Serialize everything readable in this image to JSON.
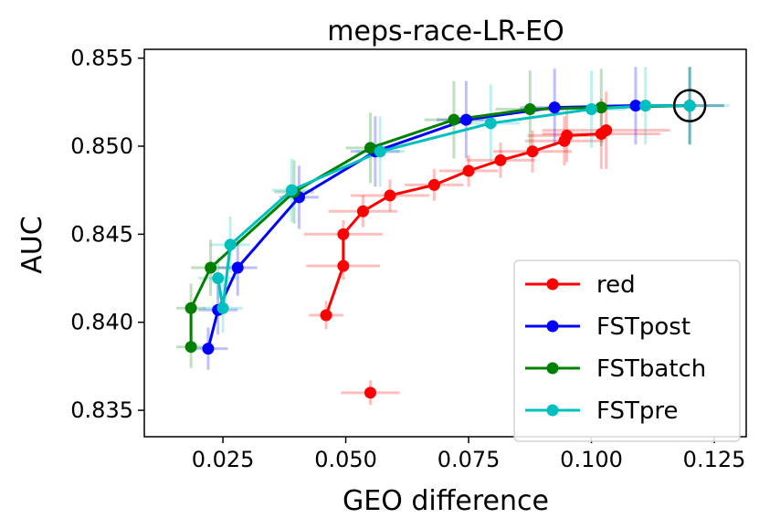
{
  "chart_data": {
    "type": "line",
    "title": "meps-race-LR-EO",
    "xlabel": "GEO difference",
    "ylabel": "AUC",
    "xlim": [
      0.009,
      0.1315
    ],
    "ylim": [
      0.8335,
      0.8555
    ],
    "xticks": [
      0.025,
      0.05,
      0.075,
      0.1,
      0.125
    ],
    "xtick_labels": [
      "0.025",
      "0.050",
      "0.075",
      "0.100",
      "0.125"
    ],
    "yticks": [
      0.835,
      0.84,
      0.845,
      0.85,
      0.855
    ],
    "ytick_labels": [
      "0.835",
      "0.840",
      "0.845",
      "0.850",
      "0.855"
    ],
    "legend_position": "lower-right",
    "highlight": {
      "x": 0.12,
      "y": 0.8523,
      "label": "circled reference point"
    },
    "series": [
      {
        "name": "red",
        "color": "#ff0000",
        "connected": true,
        "x": [
          0.046,
          0.0495,
          0.0495,
          0.0535,
          0.059,
          0.068,
          0.075,
          0.0815,
          0.088,
          0.0945,
          0.095,
          0.102,
          0.103
        ],
        "y": [
          0.8404,
          0.8432,
          0.845,
          0.8463,
          0.8472,
          0.8478,
          0.8486,
          0.8492,
          0.8497,
          0.8503,
          0.8506,
          0.8507,
          0.8509
        ],
        "xerr": [
          0.0035,
          0.0075,
          0.008,
          0.007,
          0.008,
          0.006,
          0.006,
          0.007,
          0.008,
          0.008,
          0.008,
          0.012,
          0.013
        ],
        "yerr": [
          0.0008,
          0.0008,
          0.0008,
          0.0009,
          0.0009,
          0.0009,
          0.0009,
          0.001,
          0.0012,
          0.0014,
          0.0015,
          0.002,
          0.0022
        ]
      },
      {
        "name": "red (isolated)",
        "legend": false,
        "color": "#ff0000",
        "connected": false,
        "x": [
          0.055
        ],
        "y": [
          0.836
        ],
        "xerr": [
          0.006
        ],
        "yerr": [
          0.0007
        ]
      },
      {
        "name": "FSTpost",
        "color": "#0000ff",
        "connected": true,
        "x": [
          0.022,
          0.024,
          0.028,
          0.0405,
          0.056,
          0.0745,
          0.0925,
          0.109,
          0.12
        ],
        "y": [
          0.8385,
          0.8407,
          0.8431,
          0.8471,
          0.8497,
          0.8515,
          0.8522,
          0.8523,
          0.8523
        ],
        "xerr": [
          0.004,
          0.004,
          0.004,
          0.004,
          0.005,
          0.006,
          0.007,
          0.007,
          0.007
        ],
        "yerr": [
          0.0012,
          0.0014,
          0.0016,
          0.0018,
          0.002,
          0.0022,
          0.0022,
          0.0022,
          0.0022
        ]
      },
      {
        "name": "FSTbatch",
        "color": "#008000",
        "connected": true,
        "x": [
          0.0185,
          0.0185,
          0.0225,
          0.0395,
          0.055,
          0.072,
          0.0875,
          0.102,
          0.12
        ],
        "y": [
          0.8386,
          0.8408,
          0.8431,
          0.8474,
          0.8499,
          0.8515,
          0.8521,
          0.8522,
          0.8523
        ],
        "xerr": [
          0.003,
          0.003,
          0.004,
          0.004,
          0.005,
          0.006,
          0.007,
          0.007,
          0.007
        ],
        "yerr": [
          0.0012,
          0.0014,
          0.0016,
          0.0018,
          0.002,
          0.0022,
          0.0022,
          0.0022,
          0.0022
        ]
      },
      {
        "name": "FSTpre",
        "color": "#00bfbf",
        "connected": true,
        "x": [
          0.024,
          0.025,
          0.0265,
          0.039,
          0.057,
          0.0795,
          0.1,
          0.111,
          0.12
        ],
        "y": [
          0.8425,
          0.8408,
          0.8444,
          0.8475,
          0.8497,
          0.8513,
          0.8521,
          0.8523,
          0.8523
        ],
        "xerr": [
          0.004,
          0.004,
          0.004,
          0.004,
          0.005,
          0.006,
          0.007,
          0.007,
          0.008
        ],
        "yerr": [
          0.0012,
          0.0014,
          0.0016,
          0.0018,
          0.002,
          0.0022,
          0.0022,
          0.0022,
          0.0022
        ]
      }
    ]
  }
}
